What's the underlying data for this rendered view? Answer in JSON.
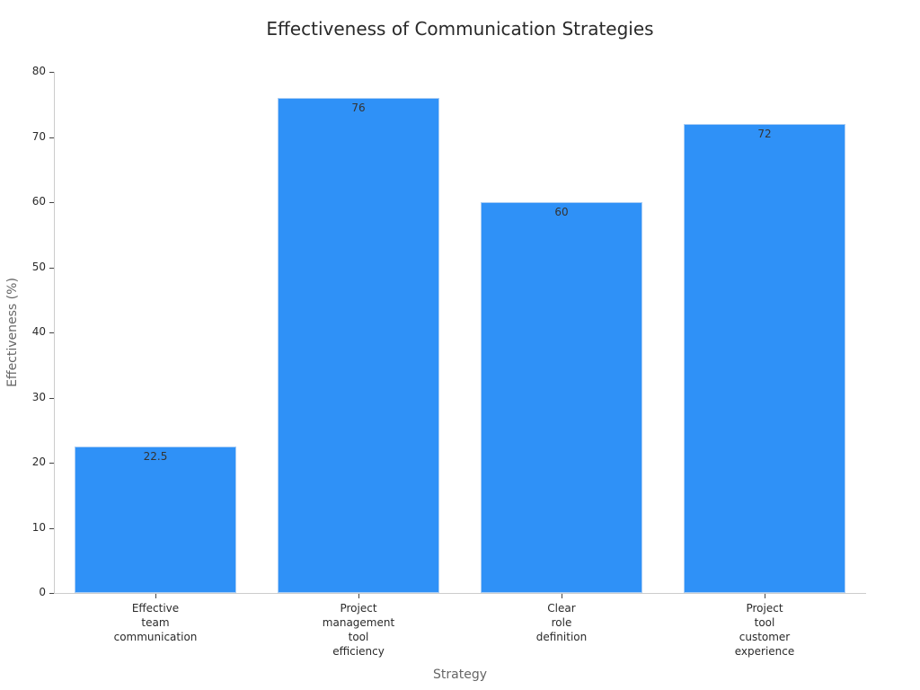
{
  "chart_data": {
    "type": "bar",
    "title": "Effectiveness of Communication Strategies",
    "xlabel": "Strategy",
    "ylabel": "Effectiveness (%)",
    "categories": [
      "Effective team communication",
      "Project management tool efficiency",
      "Clear role definition",
      "Project tool customer experience"
    ],
    "category_lines": [
      "Effective\nteam\ncommunication",
      "Project\nmanagement\ntool\nefficiency",
      "Clear\nrole\ndefinition",
      "Project\ntool\ncustomer\nexperience"
    ],
    "values": [
      22.5,
      76,
      60,
      72
    ],
    "value_labels": [
      "22.5",
      "76",
      "60",
      "72"
    ],
    "ylim": [
      0,
      80
    ],
    "yticks": [
      0,
      10,
      20,
      30,
      40,
      50,
      60,
      70,
      80
    ],
    "grid": false,
    "legend": null,
    "bar_color": "#2f91f7"
  }
}
